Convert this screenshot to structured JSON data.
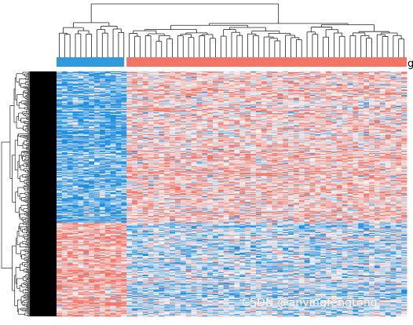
{
  "chart_data": {
    "type": "heatmap",
    "title": "",
    "group_annotation": {
      "groups": [
        {
          "name": "",
          "color": "#3399dd",
          "samples": 13
        },
        {
          "name": "",
          "color": "#f47466",
          "samples": 52
        }
      ],
      "label_text": "g"
    },
    "n_samples": 65,
    "n_genes": 300,
    "gene_blocks": [
      {
        "genes": 185,
        "group1_level": -0.7,
        "group2_level": 0.3
      },
      {
        "genes": 115,
        "group1_level": 0.55,
        "group2_level": -0.25
      }
    ],
    "value_range": [
      -2,
      2
    ],
    "colors": {
      "low": "#1f8fe0",
      "mid": "#f6f6f6",
      "high": "#f47466"
    },
    "column_dendrogram": true,
    "row_dendrogram": true
  },
  "watermark": "CSDN @anyingfengtong"
}
